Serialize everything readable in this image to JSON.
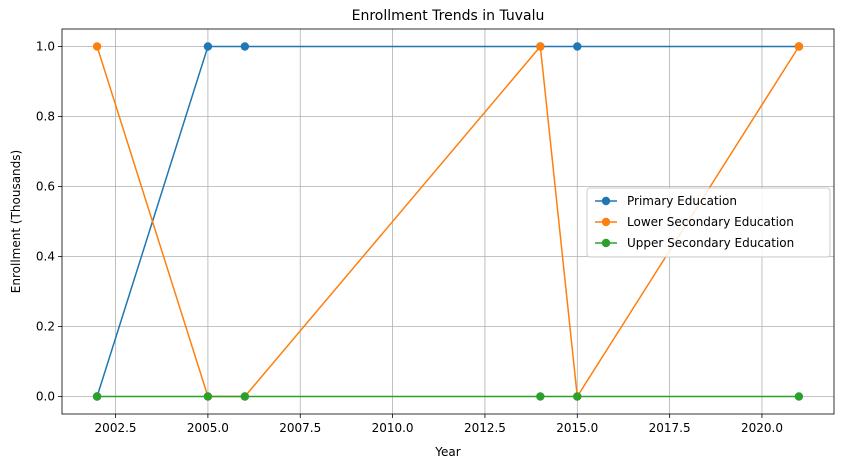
{
  "chart_data": {
    "type": "line",
    "title": "Enrollment Trends in Tuvalu",
    "xlabel": "Year",
    "ylabel": "Enrollment (Thousands)",
    "xlim": [
      2001.05,
      2021.95
    ],
    "ylim": [
      -0.05,
      1.05
    ],
    "xticks": [
      2002.5,
      2005.0,
      2007.5,
      2010.0,
      2012.5,
      2015.0,
      2017.5,
      2020.0
    ],
    "xtick_labels": [
      "2002.5",
      "2005.0",
      "2007.5",
      "2010.0",
      "2012.5",
      "2015.0",
      "2017.5",
      "2020.0"
    ],
    "yticks": [
      0.0,
      0.2,
      0.4,
      0.6,
      0.8,
      1.0
    ],
    "ytick_labels": [
      "0.0",
      "0.2",
      "0.4",
      "0.6",
      "0.8",
      "1.0"
    ],
    "grid": true,
    "legend_position": "center-right",
    "series": [
      {
        "name": "Primary Education",
        "color": "#1f77b4",
        "x": [
          2002,
          2005,
          2006,
          2014,
          2015,
          2021
        ],
        "y": [
          0,
          1,
          1,
          1,
          1,
          1
        ]
      },
      {
        "name": "Lower Secondary Education",
        "color": "#ff7f0e",
        "x": [
          2002,
          2005,
          2006,
          2014,
          2015,
          2021
        ],
        "y": [
          1,
          0,
          0,
          1,
          0,
          1
        ]
      },
      {
        "name": "Upper Secondary Education",
        "color": "#2ca02c",
        "x": [
          2002,
          2005,
          2006,
          2014,
          2015,
          2021
        ],
        "y": [
          0,
          0,
          0,
          0,
          0,
          0
        ]
      }
    ]
  }
}
